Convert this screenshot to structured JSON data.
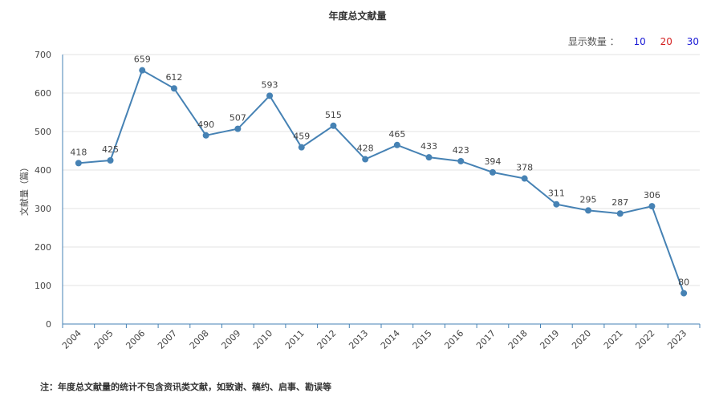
{
  "page": {
    "title": "年度总文献量",
    "display_count": {
      "label": "显示数量 ：",
      "options": [
        "10",
        "20",
        "30"
      ]
    },
    "footnote": "注：年度总文献量的统计不包含资讯类文献，如致谢、稿约、启事、勘误等"
  },
  "chart_data": {
    "type": "line",
    "title": "年度总文献量",
    "xlabel": "",
    "ylabel": "文献量（篇）",
    "ylim": [
      0,
      700
    ],
    "yticks": [
      "0",
      "100",
      "200",
      "300",
      "400",
      "500",
      "600",
      "700"
    ],
    "grid": true,
    "categories": [
      "2004",
      "2005",
      "2006",
      "2007",
      "2008",
      "2009",
      "2010",
      "2011",
      "2012",
      "2013",
      "2014",
      "2015",
      "2016",
      "2017",
      "2018",
      "2019",
      "2020",
      "2021",
      "2022",
      "2023"
    ],
    "series": [
      {
        "values": [
          418,
          425,
          659,
          612,
          490,
          507,
          593,
          459,
          515,
          428,
          465,
          433,
          423,
          394,
          378,
          311,
          295,
          287,
          306,
          80
        ],
        "color": "#4682b4"
      }
    ]
  }
}
